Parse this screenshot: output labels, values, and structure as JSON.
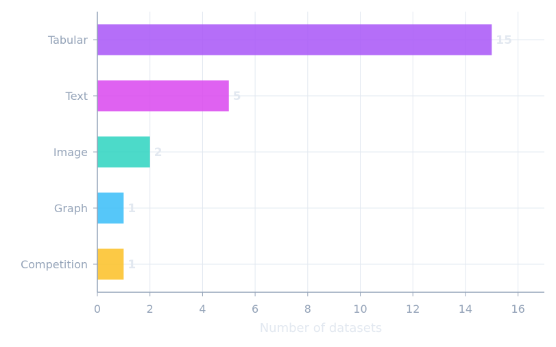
{
  "chart_data": {
    "type": "bar",
    "orientation": "horizontal",
    "categories": [
      "Tabular",
      "Text",
      "Image",
      "Graph",
      "Competition"
    ],
    "values": [
      15,
      5,
      2,
      1,
      1
    ],
    "bar_colors": [
      "#a855f7",
      "#d946ef",
      "#2dd4bf",
      "#38bdf8",
      "#fbbf24"
    ],
    "title": "",
    "xlabel": "Number of datasets",
    "ylabel": "",
    "xlim": [
      0,
      17
    ],
    "xticks": [
      "0",
      "2",
      "4",
      "6",
      "8",
      "10",
      "12",
      "14",
      "16"
    ],
    "data_labels": [
      "15",
      "5",
      "2",
      "1",
      "1"
    ],
    "grid": true,
    "colors": {
      "axis": "#94a3b8",
      "grid": "#e2e8f0",
      "tick_text": "#94a3b8",
      "data_label": "#e2e8f0"
    }
  }
}
